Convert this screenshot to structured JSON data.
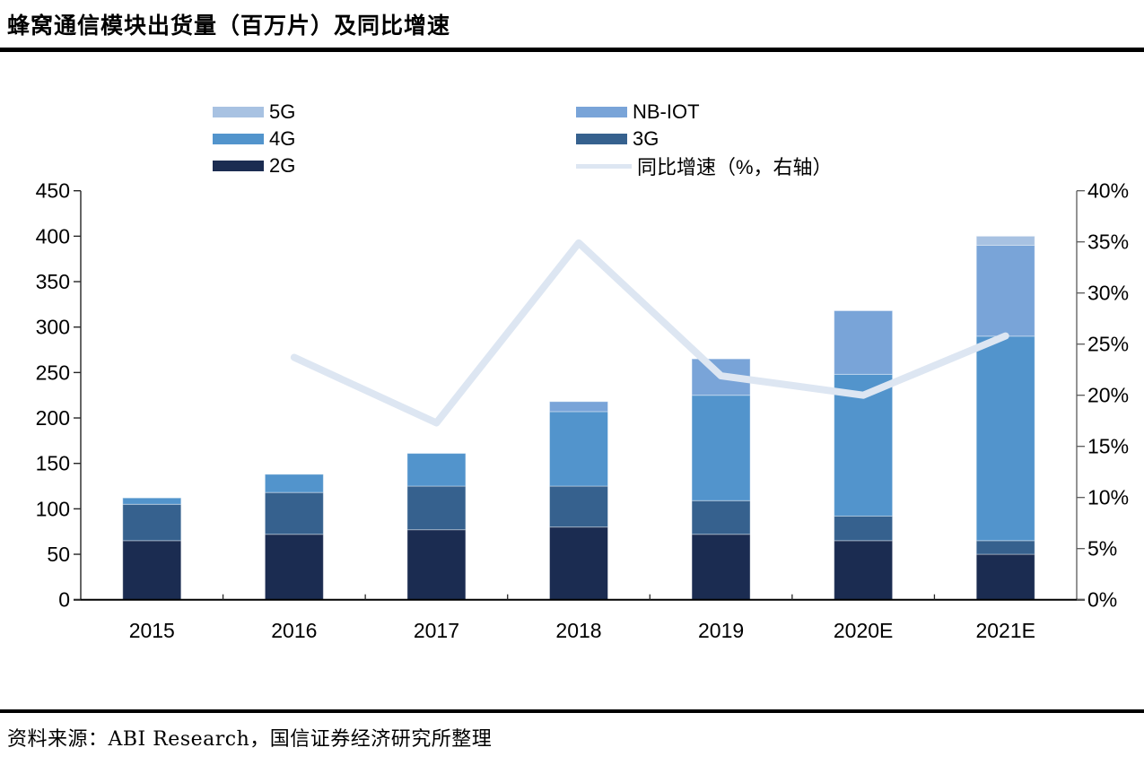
{
  "page": {
    "title": "蜂窝通信模块出货量（百万片）及同比增速",
    "source": "资料来源：ABI Research，国信证券经济研究所整理"
  },
  "colors": {
    "g5": "#a8c2e2",
    "nbiot": "#79a4d8",
    "g4": "#5294cc",
    "g3": "#36618e",
    "g2": "#1b2c51",
    "growth_line": "#dde6f2",
    "axis": "#262626",
    "right_axis": "#595959"
  },
  "legend": {
    "columns": [
      {
        "items": [
          {
            "label": "5G",
            "color": "#a8c2e2",
            "type": "box"
          },
          {
            "label": "4G",
            "color": "#5294cc",
            "type": "box"
          },
          {
            "label": "2G",
            "color": "#1b2c51",
            "type": "box"
          }
        ]
      },
      {
        "items": [
          {
            "label": "NB-IOT",
            "color": "#79a4d8",
            "type": "box"
          },
          {
            "label": "3G",
            "color": "#36618e",
            "type": "box"
          },
          {
            "label": "同比增速（%，右轴）",
            "color": "#dde6f2",
            "type": "line"
          }
        ]
      }
    ]
  },
  "chart_data": {
    "type": "bar",
    "subtype": "stacked-bars-with-line",
    "title": "蜂窝通信模块出货量（百万片）及同比增速",
    "categories": [
      "2015",
      "2016",
      "2017",
      "2018",
      "2019",
      "2020E",
      "2021E"
    ],
    "series": [
      {
        "name": "2G",
        "color": "#1b2c51",
        "values": [
          65,
          72,
          77,
          80,
          72,
          65,
          50
        ]
      },
      {
        "name": "3G",
        "color": "#36618e",
        "values": [
          40,
          46,
          48,
          45,
          37,
          27,
          15
        ]
      },
      {
        "name": "4G",
        "color": "#5294cc",
        "values": [
          7,
          20,
          36,
          82,
          116,
          156,
          225
        ]
      },
      {
        "name": "NB-IOT",
        "color": "#79a4d8",
        "values": [
          0,
          0,
          0,
          11,
          40,
          70,
          100
        ]
      },
      {
        "name": "5G",
        "color": "#a8c2e2",
        "values": [
          0,
          0,
          0,
          0,
          0,
          0,
          10
        ]
      }
    ],
    "totals": [
      112,
      138,
      161,
      218,
      265,
      318,
      400
    ],
    "line_series": {
      "name": "同比增速（%，右轴）",
      "color": "#dde6f2",
      "axis": "right",
      "values": [
        null,
        23.7,
        17.3,
        34.9,
        21.9,
        20.0,
        25.8
      ]
    },
    "left_axis": {
      "min": 0,
      "max": 450,
      "step": 50,
      "ticks": [
        "0",
        "50",
        "100",
        "150",
        "200",
        "250",
        "300",
        "350",
        "400",
        "450"
      ]
    },
    "right_axis": {
      "min": 0,
      "max": 40,
      "step": 5,
      "ticks": [
        "0%",
        "5%",
        "10%",
        "15%",
        "20%",
        "25%",
        "30%",
        "35%",
        "40%"
      ]
    },
    "legend_position": "top",
    "grid": false
  }
}
